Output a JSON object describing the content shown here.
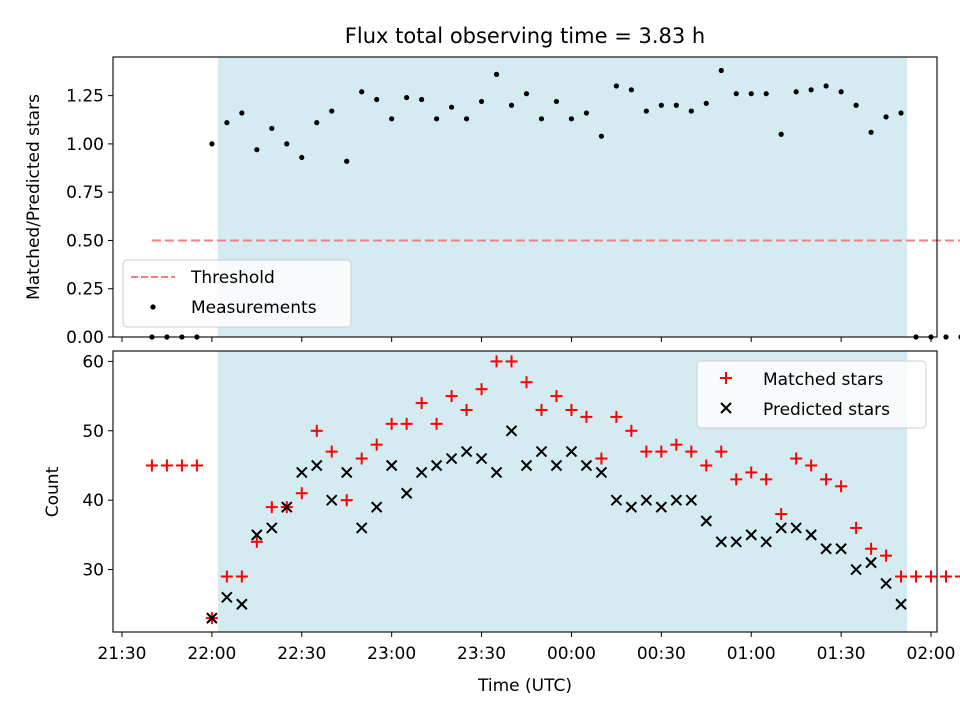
{
  "title": "Flux total observing time = 3.83 h",
  "colors": {
    "observing_window": "#d4ebf1",
    "threshold": "#f28080",
    "measurement": "#000000",
    "matched": "#ff0000",
    "predicted": "#000000"
  },
  "chart_data": [
    {
      "type": "scatter",
      "panel": "top",
      "title": "Flux total observing time = 3.83 h",
      "xlabel": "",
      "ylabel": "Matched/Predicted stars",
      "ylim": [
        0,
        1.45
      ],
      "yticks": [
        0,
        0.25,
        0.5,
        0.75,
        1.0,
        1.25
      ],
      "ytick_labels": [
        "0.00",
        "0.25",
        "0.50",
        "0.75",
        "1.00",
        "1.25"
      ],
      "x_unit": "minutes after 21:30 UTC",
      "xlim": [
        -3,
        272
      ],
      "observing_window": [
        32,
        262
      ],
      "legend": {
        "position": "lower-left"
      },
      "threshold": {
        "name": "Threshold",
        "y": 0.5,
        "x": [
          10,
          283
        ],
        "style": "dashed"
      },
      "series": [
        {
          "name": "Measurements",
          "x": [
            10,
            15,
            20,
            25,
            30,
            35,
            40,
            45,
            50,
            55,
            60,
            65,
            70,
            75,
            80,
            85,
            90,
            95,
            100,
            105,
            110,
            115,
            120,
            125,
            130,
            135,
            140,
            145,
            150,
            155,
            160,
            165,
            170,
            175,
            180,
            185,
            190,
            195,
            200,
            205,
            210,
            215,
            220,
            225,
            230,
            235,
            240,
            245,
            250,
            255,
            260,
            265,
            270,
            275,
            280
          ],
          "y": [
            0,
            0,
            0,
            0,
            1.0,
            1.11,
            1.16,
            0.97,
            1.08,
            1.0,
            0.93,
            1.11,
            1.17,
            0.91,
            1.27,
            1.23,
            1.13,
            1.24,
            1.23,
            1.13,
            1.19,
            1.13,
            1.22,
            1.36,
            1.2,
            1.26,
            1.13,
            1.22,
            1.13,
            1.16,
            1.04,
            1.3,
            1.28,
            1.17,
            1.2,
            1.2,
            1.17,
            1.21,
            1.38,
            1.26,
            1.26,
            1.26,
            1.05,
            1.27,
            1.28,
            1.3,
            1.27,
            1.2,
            1.06,
            1.14,
            1.16,
            0,
            0,
            0,
            0
          ]
        }
      ]
    },
    {
      "type": "scatter",
      "panel": "bottom",
      "xlabel": "Time (UTC)",
      "ylabel": "Count",
      "ylim": [
        21,
        61.5
      ],
      "yticks": [
        30,
        40,
        50,
        60
      ],
      "x_unit": "minutes after 21:30 UTC",
      "xlim": [
        -3,
        272
      ],
      "xticks": [
        0,
        30,
        60,
        90,
        120,
        150,
        180,
        210,
        240,
        270
      ],
      "xtick_labels": [
        "21:30",
        "22:00",
        "22:30",
        "23:00",
        "23:30",
        "00:00",
        "00:30",
        "01:00",
        "01:30",
        "02:00"
      ],
      "observing_window": [
        32,
        262
      ],
      "legend": {
        "position": "top-right"
      },
      "series": [
        {
          "name": "Matched stars",
          "marker": "+",
          "x": [
            10,
            15,
            20,
            25,
            30,
            35,
            40,
            45,
            50,
            55,
            60,
            65,
            70,
            75,
            80,
            85,
            90,
            95,
            100,
            105,
            110,
            115,
            120,
            125,
            130,
            135,
            140,
            145,
            150,
            155,
            160,
            165,
            170,
            175,
            180,
            185,
            190,
            195,
            200,
            205,
            210,
            215,
            220,
            225,
            230,
            235,
            240,
            245,
            250,
            255,
            260,
            265,
            270,
            275,
            280
          ],
          "y": [
            45,
            45,
            45,
            45,
            23,
            29,
            29,
            34,
            39,
            39,
            41,
            50,
            47,
            40,
            46,
            48,
            51,
            51,
            54,
            51,
            55,
            53,
            56,
            60,
            60,
            57,
            53,
            55,
            53,
            52,
            46,
            52,
            50,
            47,
            47,
            48,
            47,
            45,
            47,
            43,
            44,
            43,
            38,
            46,
            45,
            43,
            42,
            36,
            33,
            32,
            29,
            29,
            29,
            29,
            29
          ]
        },
        {
          "name": "Predicted stars",
          "marker": "x",
          "x": [
            30,
            35,
            40,
            45,
            50,
            55,
            60,
            65,
            70,
            75,
            80,
            85,
            90,
            95,
            100,
            105,
            110,
            115,
            120,
            125,
            130,
            135,
            140,
            145,
            150,
            155,
            160,
            165,
            170,
            175,
            180,
            185,
            190,
            195,
            200,
            205,
            210,
            215,
            220,
            225,
            230,
            235,
            240,
            245,
            250,
            255,
            260
          ],
          "y": [
            23,
            26,
            25,
            35,
            36,
            39,
            44,
            45,
            40,
            44,
            36,
            39,
            45,
            41,
            44,
            45,
            46,
            47,
            46,
            44,
            50,
            45,
            47,
            45,
            47,
            45,
            44,
            40,
            39,
            40,
            39,
            40,
            40,
            37,
            34,
            34,
            35,
            34,
            36,
            36,
            35,
            33,
            33,
            30,
            31,
            28,
            25
          ]
        }
      ]
    }
  ]
}
